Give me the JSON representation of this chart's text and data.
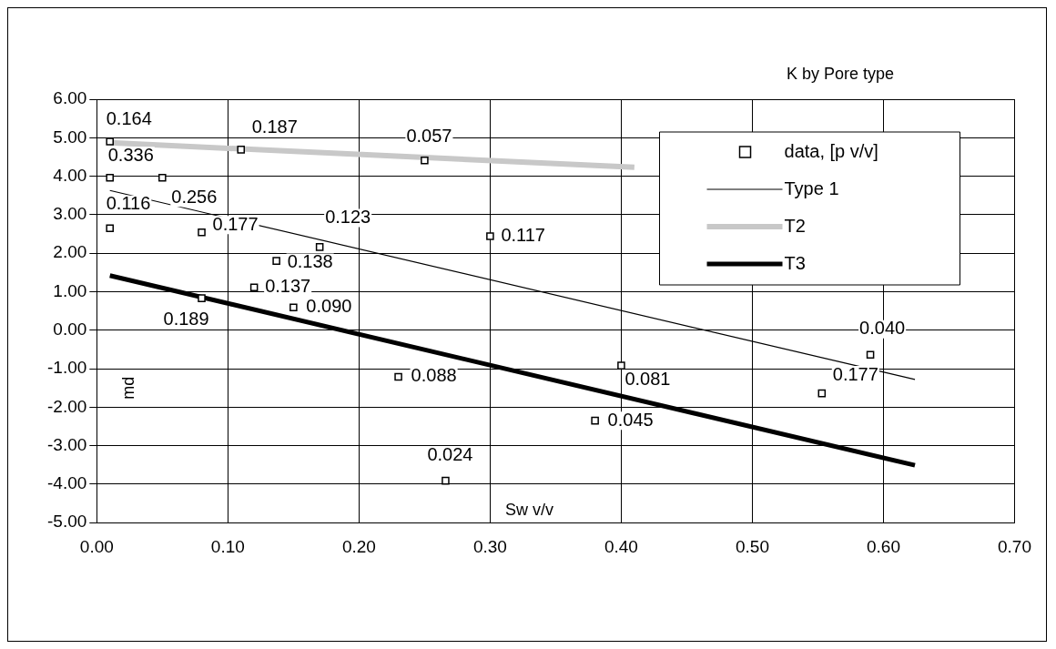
{
  "chart_data": {
    "type": "scatter",
    "title": "K by Pore type",
    "xlabel": "Sw v/v",
    "ylabel": "md",
    "xlim": [
      0,
      0.7
    ],
    "xticks": [
      {
        "value": 0,
        "label": "0.00"
      },
      {
        "value": 0.1,
        "label": "0.10"
      },
      {
        "value": 0.2,
        "label": "0.20"
      },
      {
        "value": 0.3,
        "label": "0.30"
      },
      {
        "value": 0.4,
        "label": "0.40"
      },
      {
        "value": 0.5,
        "label": "0.50"
      },
      {
        "value": 0.6,
        "label": "0.60"
      },
      {
        "value": 0.7,
        "label": "0.70"
      }
    ],
    "ylim": [
      -5,
      6
    ],
    "yticks": [
      {
        "value": -5,
        "label": "-5.00"
      },
      {
        "value": -4,
        "label": "-4.00"
      },
      {
        "value": -3,
        "label": "-3.00"
      },
      {
        "value": -2,
        "label": "-2.00"
      },
      {
        "value": -1,
        "label": "-1.00"
      },
      {
        "value": 0,
        "label": "0.00"
      },
      {
        "value": 1,
        "label": "1.00"
      },
      {
        "value": 2,
        "label": "2.00"
      },
      {
        "value": 3,
        "label": "3.00"
      },
      {
        "value": 4,
        "label": "4.00"
      },
      {
        "value": 5,
        "label": "5.00"
      },
      {
        "value": 6,
        "label": "6.00"
      }
    ],
    "grid": true,
    "legend": "top right",
    "annotations": [
      {
        "text": "0.164",
        "x": 0.01,
        "y": 4.9
      },
      {
        "text": "0.336",
        "x": 0.01,
        "y": 3.96
      },
      {
        "text": "0.256",
        "x": 0.05,
        "y": 3.96
      },
      {
        "text": "0.116",
        "x": 0.01,
        "y": 2.65
      },
      {
        "text": "0.177",
        "x": 0.08,
        "y": 2.54
      },
      {
        "text": "0.187",
        "x": 0.11,
        "y": 4.69
      },
      {
        "text": "0.057",
        "x": 0.25,
        "y": 4.41
      },
      {
        "text": "0.123",
        "x": 0.17,
        "y": 2.16
      },
      {
        "text": "0.138",
        "x": 0.137,
        "y": 1.8
      },
      {
        "text": "0.137",
        "x": 0.12,
        "y": 1.11
      },
      {
        "text": "0.189",
        "x": 0.08,
        "y": 0.83
      },
      {
        "text": "0.090",
        "x": 0.15,
        "y": 0.59
      },
      {
        "text": "0.088",
        "x": 0.23,
        "y": -1.21
      },
      {
        "text": "0.024",
        "x": 0.266,
        "y": -3.91
      },
      {
        "text": "0.117",
        "x": 0.3,
        "y": 2.44
      },
      {
        "text": "0.081",
        "x": 0.4,
        "y": -0.92
      },
      {
        "text": "0.045",
        "x": 0.38,
        "y": -2.35
      },
      {
        "text": "0.177",
        "x": 0.553,
        "y": -1.64
      },
      {
        "text": "0.040",
        "x": 0.59,
        "y": -0.64
      }
    ],
    "series": [
      {
        "name": "data, [p v/v]",
        "type": "scatter",
        "marker": "square",
        "color": "#000000",
        "x": [
          0.01,
          0.01,
          0.05,
          0.01,
          0.08,
          0.11,
          0.25,
          0.17,
          0.137,
          0.12,
          0.08,
          0.15,
          0.23,
          0.266,
          0.3,
          0.4,
          0.38,
          0.553,
          0.59
        ],
        "values": [
          4.9,
          3.96,
          3.96,
          2.65,
          2.54,
          4.69,
          4.41,
          2.16,
          1.8,
          1.11,
          0.83,
          0.59,
          -1.21,
          -3.91,
          2.44,
          -0.92,
          -2.35,
          -1.64,
          -0.64
        ]
      },
      {
        "name": "Type 1",
        "type": "line",
        "marker": "none",
        "color": "#000000",
        "x": [
          0.01,
          0.624
        ],
        "values": [
          3.63,
          -1.28
        ]
      },
      {
        "name": "T2",
        "type": "line",
        "marker": "none",
        "color": "#c8c8c8",
        "x": [
          0.01,
          0.41
        ],
        "values": [
          4.87,
          4.23
        ]
      },
      {
        "name": "T3",
        "type": "line",
        "marker": "none",
        "line_style": "solid",
        "color": "#000000",
        "x": [
          0.01,
          0.624
        ],
        "values": [
          1.42,
          -3.51
        ]
      }
    ]
  }
}
